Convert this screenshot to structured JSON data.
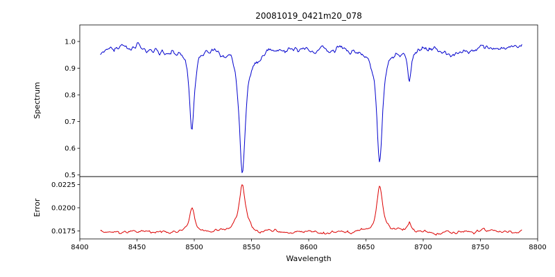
{
  "figure": {
    "background": "#ffffff",
    "frame_color": "#000000"
  },
  "chart_data": [
    {
      "type": "line",
      "title": "20081019_0421m20_078",
      "ylabel": "Spectrum",
      "xlabel": "",
      "xlim": [
        8400,
        8800
      ],
      "ylim": [
        0.494,
        1.062
      ],
      "y_tick_values": [
        1.0,
        0.9,
        0.8,
        0.7,
        0.6,
        0.5
      ],
      "y_tick_labels": [
        "1.0",
        "0.9",
        "0.8",
        "0.7",
        "0.6",
        "0.5"
      ],
      "line_color": "#0000cd",
      "grid": false,
      "legend": null,
      "series_model": {
        "description": "Continuum-normalized stellar spectrum with Ca II triplet absorption lines plus noise",
        "x_start": 8418,
        "x_end": 8786,
        "step": 0.75,
        "continuum": 0.972,
        "noise_amplitude": 0.016,
        "absorption_lines": [
          {
            "center": 8498,
            "min_value": 0.66,
            "width": 2.6
          },
          {
            "center": 8542,
            "min_value": 0.51,
            "width": 3.2
          },
          {
            "center": 8662,
            "min_value": 0.54,
            "width": 3.0
          },
          {
            "center": 8688,
            "min_value": 0.86,
            "width": 1.8
          }
        ],
        "seed": 3
      }
    },
    {
      "type": "line",
      "title": "",
      "ylabel": "Error",
      "xlabel": "Wavelength",
      "xlim": [
        8400,
        8800
      ],
      "ylim": [
        0.01665,
        0.02335
      ],
      "x_tick_values": [
        8400,
        8450,
        8500,
        8550,
        8600,
        8650,
        8700,
        8750,
        8800
      ],
      "x_tick_labels": [
        "8400",
        "8450",
        "8500",
        "8550",
        "8600",
        "8650",
        "8700",
        "8750",
        "8800"
      ],
      "y_tick_values": [
        0.0225,
        0.02,
        0.0175
      ],
      "y_tick_labels": [
        "0.0225",
        "0.0200",
        "0.0175"
      ],
      "line_color": "#dc0000",
      "grid": false,
      "legend": null,
      "series_model": {
        "description": "Per-pixel flux uncertainty; baseline with peaks at absorption line centers",
        "x_start": 8418,
        "x_end": 8786,
        "step": 0.75,
        "baseline": 0.0174,
        "noise_amplitude": 0.00026,
        "peaks": [
          {
            "center": 8498,
            "peak_value": 0.0199,
            "width": 2.6
          },
          {
            "center": 8542,
            "peak_value": 0.0226,
            "width": 3.4
          },
          {
            "center": 8662,
            "peak_value": 0.0224,
            "width": 3.0
          },
          {
            "center": 8688,
            "peak_value": 0.0184,
            "width": 1.8
          }
        ],
        "seed": 11
      }
    }
  ]
}
